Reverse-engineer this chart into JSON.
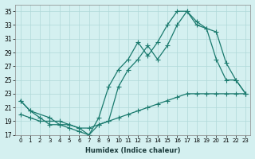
{
  "xlabel": "Humidex (Indice chaleur)",
  "ylabel": "",
  "background_color": "#d4f0f0",
  "grid_color": "#b0d8d8",
  "line_color": "#1a7a6e",
  "xlim": [
    -0.5,
    23.5
  ],
  "ylim": [
    17,
    36
  ],
  "yticks": [
    17,
    19,
    21,
    23,
    25,
    27,
    29,
    31,
    33,
    35
  ],
  "xticks": [
    0,
    1,
    2,
    3,
    4,
    5,
    6,
    7,
    8,
    9,
    10,
    11,
    12,
    13,
    14,
    15,
    16,
    17,
    18,
    19,
    20,
    21,
    22,
    23
  ],
  "line1_x": [
    0,
    1,
    2,
    3,
    4,
    5,
    6,
    7,
    8,
    9,
    10,
    11,
    12,
    13,
    14,
    15,
    16,
    17,
    18,
    19,
    20,
    21,
    22,
    23
  ],
  "line1_y": [
    22,
    20.5,
    19.5,
    18.5,
    18.5,
    18,
    17.5,
    17,
    19.5,
    24,
    26.5,
    28,
    30.5,
    28.5,
    30.5,
    33,
    35,
    35,
    33.5,
    32.5,
    28,
    25,
    25,
    23
  ],
  "line2_x": [
    0,
    1,
    3,
    4,
    5,
    6,
    7,
    8,
    9,
    10,
    11,
    12,
    13,
    14,
    15,
    16,
    17,
    18,
    19,
    20,
    21,
    22,
    23
  ],
  "line2_y": [
    22,
    20.5,
    19.5,
    18.5,
    18.5,
    18,
    17,
    18.5,
    19,
    24,
    26.5,
    28,
    30,
    28,
    30,
    33,
    35,
    33,
    32.5,
    32,
    27.5,
    25,
    23
  ],
  "line3_x": [
    0,
    1,
    2,
    3,
    4,
    5,
    6,
    7,
    8,
    9,
    10,
    11,
    12,
    13,
    14,
    15,
    16,
    17,
    18,
    19,
    20,
    21,
    22,
    23
  ],
  "line3_y": [
    20,
    19.5,
    19,
    19,
    19,
    18.5,
    18,
    18,
    18.5,
    19,
    19.5,
    20,
    20.5,
    21,
    21.5,
    22,
    22.5,
    23,
    23,
    23,
    23,
    23,
    23,
    23
  ]
}
